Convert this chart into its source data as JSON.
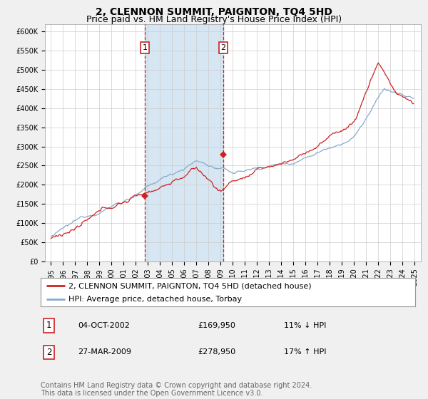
{
  "title": "2, CLENNON SUMMIT, PAIGNTON, TQ4 5HD",
  "subtitle": "Price paid vs. HM Land Registry's House Price Index (HPI)",
  "ylim": [
    0,
    620000
  ],
  "yticks": [
    0,
    50000,
    100000,
    150000,
    200000,
    250000,
    300000,
    350000,
    400000,
    450000,
    500000,
    550000,
    600000
  ],
  "ytick_labels": [
    "£0",
    "£50K",
    "£100K",
    "£150K",
    "£200K",
    "£250K",
    "£300K",
    "£350K",
    "£400K",
    "£450K",
    "£500K",
    "£550K",
    "£600K"
  ],
  "hpi_color": "#89aacc",
  "price_color": "#cc2222",
  "marker1_x": 2002.75,
  "marker2_x": 2009.22,
  "marker1_value": 169950,
  "marker2_value": 278950,
  "legend_label1": "2, CLENNON SUMMIT, PAIGNTON, TQ4 5HD (detached house)",
  "legend_label2": "HPI: Average price, detached house, Torbay",
  "table_row1": [
    "1",
    "04-OCT-2002",
    "£169,950",
    "11% ↓ HPI"
  ],
  "table_row2": [
    "2",
    "27-MAR-2009",
    "£278,950",
    "17% ↑ HPI"
  ],
  "footer": "Contains HM Land Registry data © Crown copyright and database right 2024.\nThis data is licensed under the Open Government Licence v3.0.",
  "bg_color": "#f0f0f0",
  "plot_bg_color": "#ffffff",
  "shade_color": "#cce0f0",
  "title_fontsize": 10,
  "subtitle_fontsize": 9,
  "tick_fontsize": 7,
  "legend_fontsize": 8,
  "table_fontsize": 8,
  "footer_fontsize": 7
}
